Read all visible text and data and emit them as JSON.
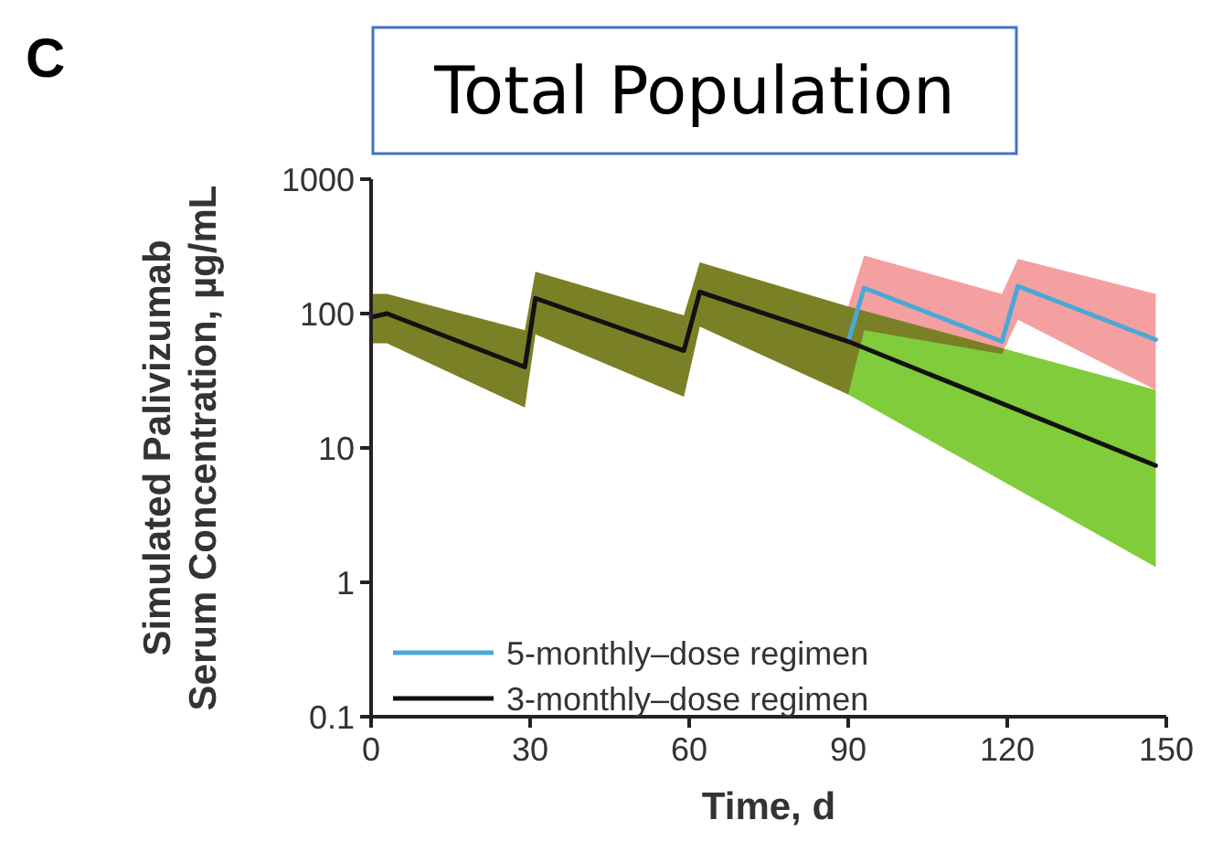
{
  "chart_data": {
    "type": "line",
    "title": "Total Population",
    "xlabel": "Time, d",
    "ylabel": "Simulated Palivizumab\nSerum Concentration, µg/mL",
    "annotations": [
      "C"
    ],
    "log": "y",
    "legend": "bottom left",
    "xlim": [
      0,
      150
    ],
    "xticks": [
      0,
      30,
      60,
      90,
      120,
      150
    ],
    "ylim": [
      0.1,
      1000
    ],
    "yticks": [
      0.1,
      1,
      10,
      100,
      1000
    ],
    "series": [
      {
        "name": "5-monthly–dose regimen",
        "color": "#4aa8d8",
        "x": [
          0,
          3,
          29,
          31,
          59,
          62,
          90,
          93,
          119,
          122,
          148
        ],
        "values": [
          null,
          null,
          null,
          null,
          null,
          null,
          62,
          155,
          62,
          160,
          64
        ],
        "lower": [
          60,
          60,
          20,
          70,
          24,
          80,
          25,
          75,
          50,
          90,
          27
        ],
        "upper": [
          140,
          140,
          75,
          205,
          97,
          240,
          113,
          270,
          140,
          255,
          140
        ]
      },
      {
        "name": "3-monthly–dose regimen",
        "color": "#111111",
        "x": [
          0,
          3,
          29,
          31,
          59,
          62,
          90,
          148
        ],
        "values": [
          94,
          100,
          40,
          130,
          53,
          145,
          62,
          7.4
        ],
        "lower": [
          60,
          60,
          20,
          70,
          24,
          80,
          25,
          1.3
        ],
        "upper": [
          140,
          140,
          75,
          205,
          97,
          240,
          113,
          27
        ]
      }
    ]
  }
}
